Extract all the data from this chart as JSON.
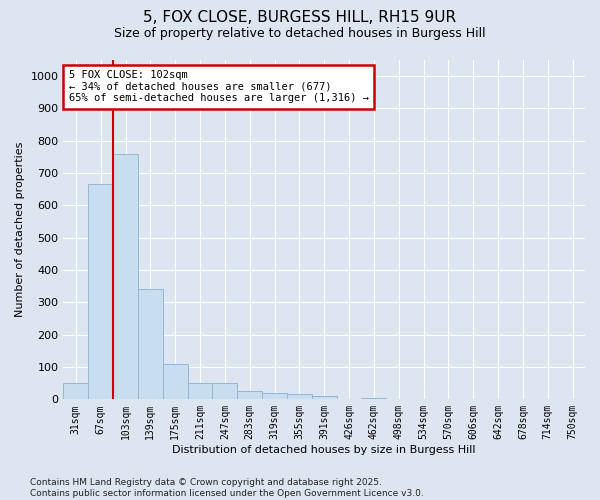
{
  "title_line1": "5, FOX CLOSE, BURGESS HILL, RH15 9UR",
  "title_line2": "Size of property relative to detached houses in Burgess Hill",
  "xlabel": "Distribution of detached houses by size in Burgess Hill",
  "ylabel": "Number of detached properties",
  "footnote": "Contains HM Land Registry data © Crown copyright and database right 2025.\nContains public sector information licensed under the Open Government Licence v3.0.",
  "bar_labels": [
    "31sqm",
    "67sqm",
    "103sqm",
    "139sqm",
    "175sqm",
    "211sqm",
    "247sqm",
    "283sqm",
    "319sqm",
    "355sqm",
    "391sqm",
    "426sqm",
    "462sqm",
    "498sqm",
    "534sqm",
    "570sqm",
    "606sqm",
    "642sqm",
    "678sqm",
    "714sqm",
    "750sqm"
  ],
  "bar_values": [
    50,
    665,
    760,
    340,
    110,
    50,
    50,
    25,
    20,
    15,
    10,
    0,
    5,
    0,
    0,
    0,
    0,
    0,
    0,
    0,
    0
  ],
  "bar_color": "#c9ddf0",
  "bar_edge_color": "#92b8d8",
  "background_color": "#dde5f0",
  "ylim": [
    0,
    1050
  ],
  "yticks": [
    0,
    100,
    200,
    300,
    400,
    500,
    600,
    700,
    800,
    900,
    1000
  ],
  "vline_x_index": 2,
  "vline_color": "#cc0000",
  "annotation_text": "5 FOX CLOSE: 102sqm\n← 34% of detached houses are smaller (677)\n65% of semi-detached houses are larger (1,316) →",
  "annotation_box_color": "#cc0000",
  "annotation_box_bg": "#ffffff",
  "grid_color": "#ffffff",
  "title_fontsize": 11,
  "subtitle_fontsize": 9,
  "xlabel_fontsize": 8,
  "ylabel_fontsize": 8,
  "tick_fontsize": 7,
  "footnote_fontsize": 6.5
}
